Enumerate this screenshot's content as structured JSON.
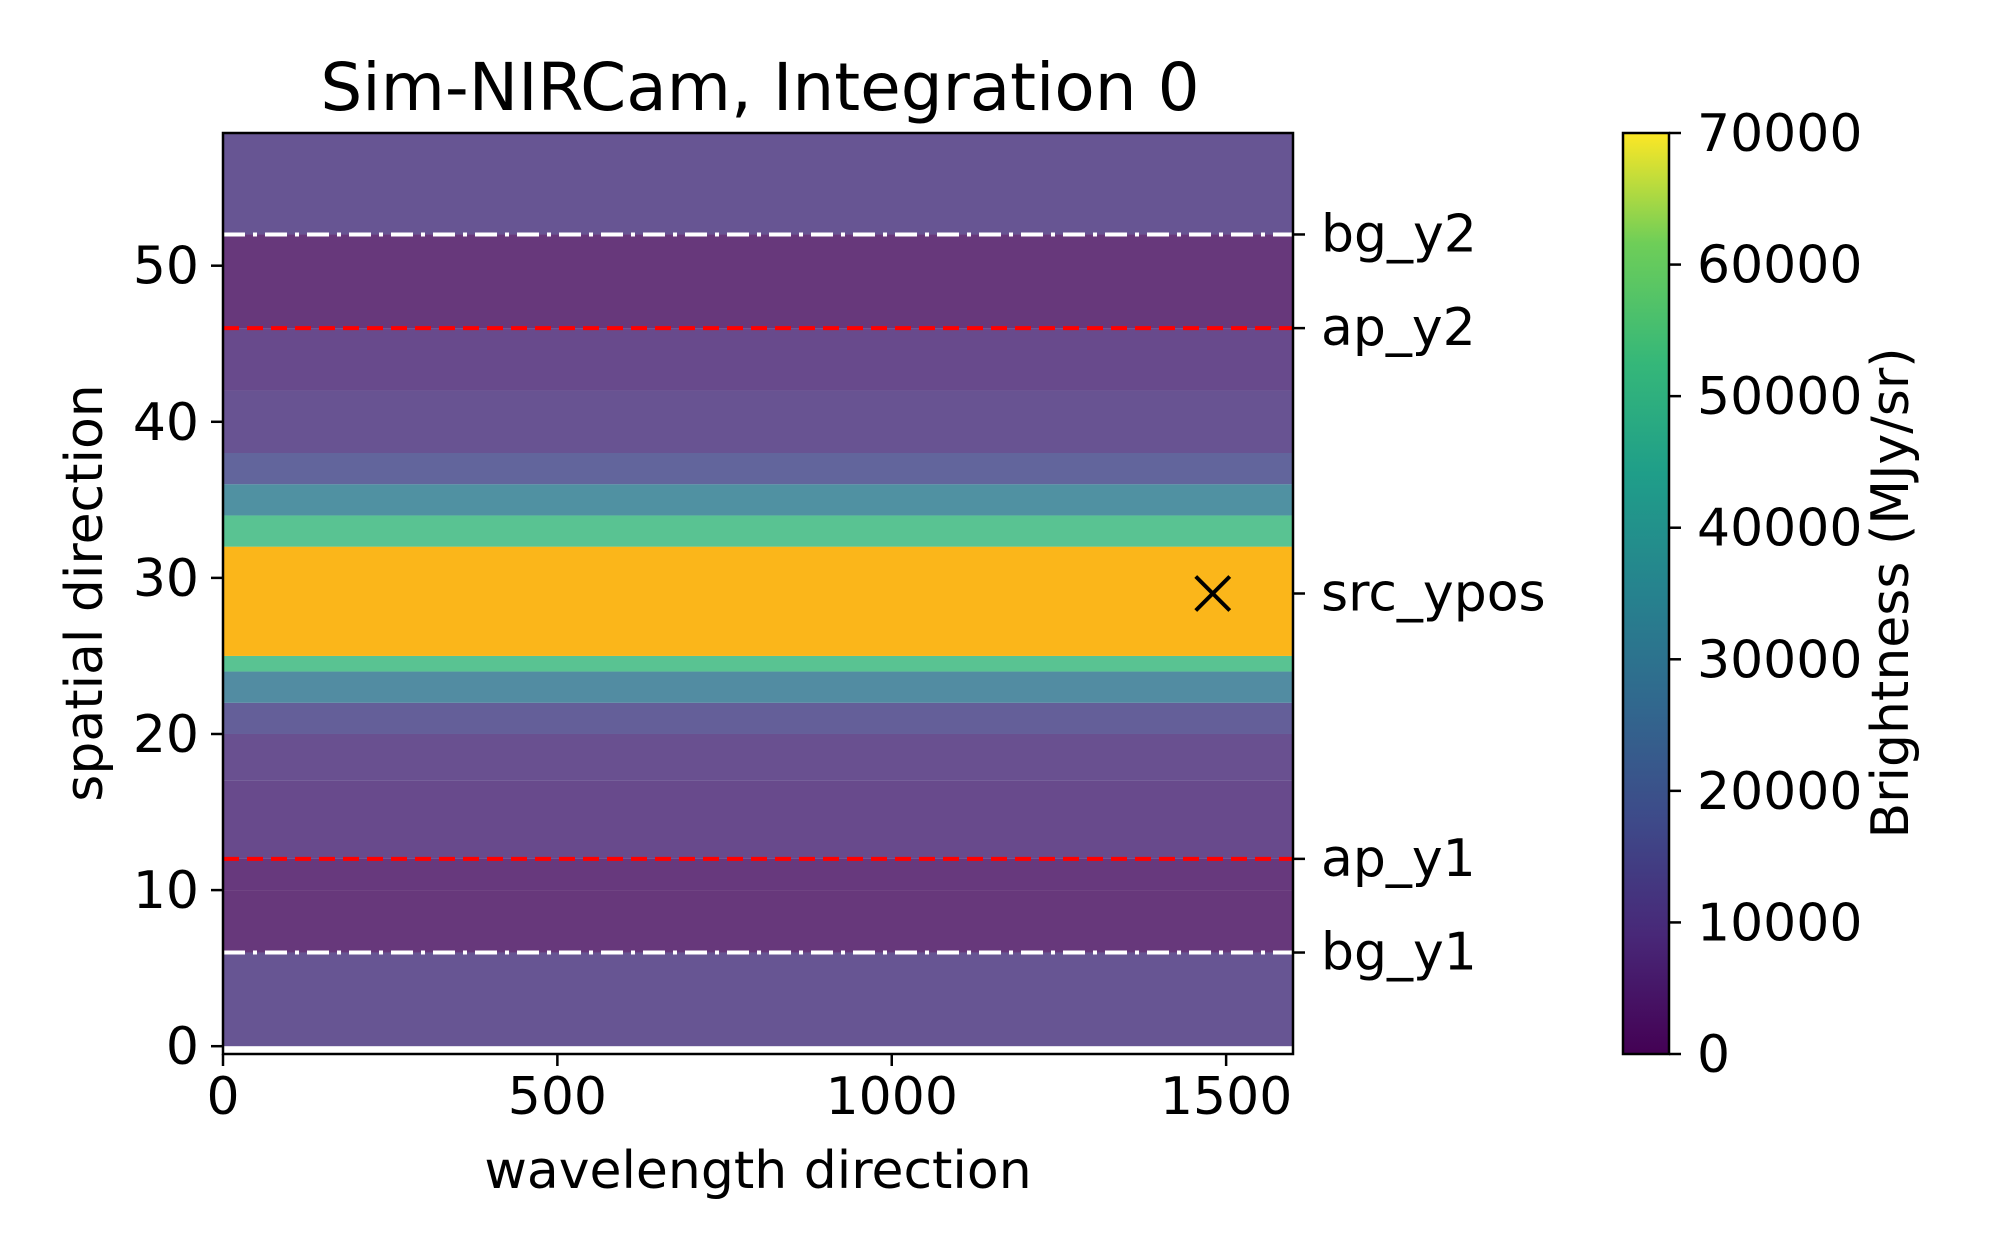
{
  "chart_data": {
    "type": "heatmap",
    "title": "Sim-NIRCam, Integration 0",
    "xlabel": "wavelength direction",
    "ylabel": "spatial direction",
    "xlim": [
      0,
      1600
    ],
    "ylim": [
      -0.5,
      58.5
    ],
    "x_ticks": [
      0,
      500,
      1000,
      1500
    ],
    "y_ticks": [
      0,
      10,
      20,
      30,
      40,
      50
    ],
    "grid": false,
    "colormap": "viridis",
    "colorbar": {
      "label": "Brightness (MJy/sr)",
      "range": [
        0,
        70000
      ],
      "ticks": [
        0,
        10000,
        20000,
        30000,
        40000,
        50000,
        60000,
        70000
      ]
    },
    "row_brightness": [
      {
        "y_range": [
          0,
          6
        ],
        "value": 10500
      },
      {
        "y_range": [
          6,
          10
        ],
        "value": 2500
      },
      {
        "y_range": [
          10,
          12
        ],
        "value": 3000
      },
      {
        "y_range": [
          12,
          17
        ],
        "value": 7500
      },
      {
        "y_range": [
          17,
          20
        ],
        "value": 9000
      },
      {
        "y_range": [
          20,
          22
        ],
        "value": 14000
      },
      {
        "y_range": [
          22,
          24
        ],
        "value": 30000
      },
      {
        "y_range": [
          24,
          25
        ],
        "value": 52000
      },
      {
        "y_range": [
          25,
          32
        ],
        "value": 70000
      },
      {
        "y_range": [
          32,
          34
        ],
        "value": 52000
      },
      {
        "y_range": [
          34,
          36
        ],
        "value": 32000
      },
      {
        "y_range": [
          36,
          38
        ],
        "value": 16000
      },
      {
        "y_range": [
          38,
          42
        ],
        "value": 10000
      },
      {
        "y_range": [
          42,
          46
        ],
        "value": 7500
      },
      {
        "y_range": [
          46,
          52
        ],
        "value": 2500
      },
      {
        "y_range": [
          52,
          58.5
        ],
        "value": 10500
      }
    ],
    "lines": [
      {
        "label": "bg_y2",
        "y": 52,
        "style": "dashdot",
        "color": "#ffffff"
      },
      {
        "label": "ap_y2",
        "y": 46,
        "style": "dashed",
        "color": "#ff0000"
      },
      {
        "label": "src_ypos",
        "y": 29,
        "style": "none",
        "color": "#000000"
      },
      {
        "label": "ap_y1",
        "y": 12,
        "style": "dashed",
        "color": "#ff0000"
      },
      {
        "label": "bg_y1",
        "y": 6,
        "style": "dashdot",
        "color": "#ffffff"
      }
    ],
    "marker": {
      "x": 1480,
      "y": 29,
      "symbol": "x",
      "color": "#000000"
    }
  }
}
